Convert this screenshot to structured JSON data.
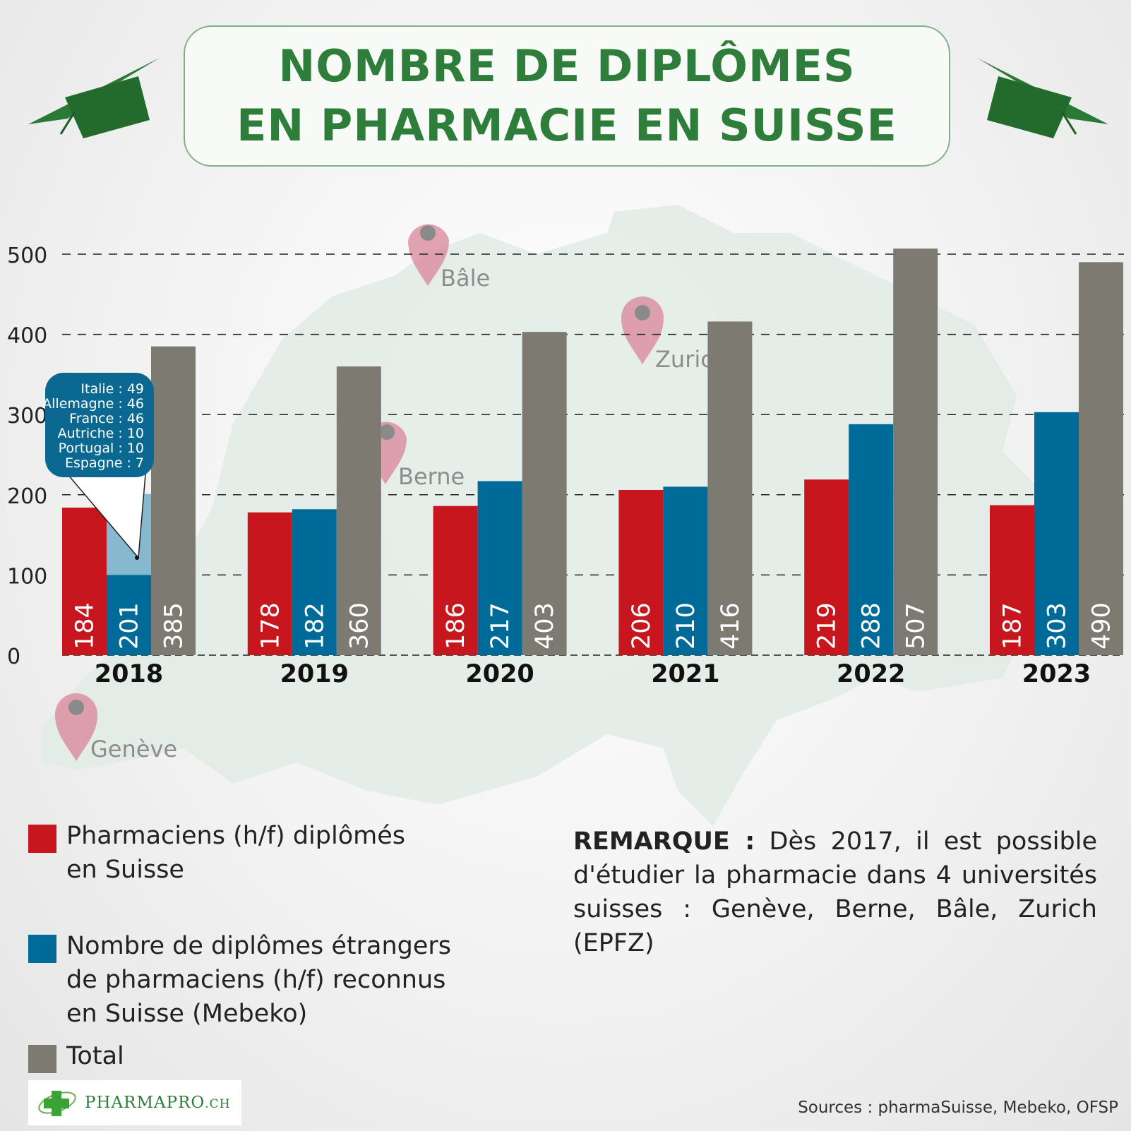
{
  "title": {
    "line1": "NOMBRE DE DIPLÔMES",
    "line2": "EN PHARMACIE EN SUISSE"
  },
  "map_labels": {
    "bale": "Bâle",
    "zurich": "Zuric",
    "berne": "Berne",
    "geneve": "Genève"
  },
  "tooltip": {
    "lines": [
      "Italie : 49",
      "Allemagne : 46",
      "France : 46",
      "Autriche : 10",
      "Portugal : 10",
      "Espagne : 7"
    ]
  },
  "legend": {
    "items": [
      {
        "label": "Pharmaciens (h/f) diplômés\nen Suisse",
        "color": "#c7161e"
      },
      {
        "label": "Nombre de diplômes étrangers\nde pharmaciens (h/f) reconnus\nen Suisse (Mebeko)",
        "color": "#006a99"
      },
      {
        "label": "Total",
        "color": "#7d7a72"
      }
    ]
  },
  "remark": {
    "label": "REMARQUE :",
    "text": " Dès 2017, il est possible d'étudier la pharmacie dans 4 universités suisses : Genève, Berne, Bâle, Zurich (EPFZ)"
  },
  "sources": "Sources : pharmaSuisse, Mebeko, OFSP",
  "logo": {
    "name": "PHARMAPRO",
    "suffix": ".CH"
  },
  "chart_data": {
    "type": "bar",
    "categories": [
      "2018",
      "2019",
      "2020",
      "2021",
      "2022",
      "2023"
    ],
    "series": [
      {
        "name": "Pharmaciens (h/f) diplômés en Suisse",
        "values": [
          184,
          178,
          186,
          206,
          219,
          187
        ],
        "color": "#c7161e"
      },
      {
        "name": "Nombre de diplômes étrangers de pharmaciens (h/f) reconnus en Suisse (Mebeko)",
        "values": [
          201,
          182,
          217,
          210,
          288,
          303
        ],
        "color": "#006a99"
      },
      {
        "name": "Total",
        "values": [
          385,
          360,
          403,
          416,
          507,
          490
        ],
        "color": "#7d7a72"
      }
    ],
    "yticks": [
      0,
      100,
      200,
      300,
      400,
      500
    ],
    "ylim": [
      0,
      500
    ],
    "grid": "dashed horizontal",
    "legend_position": "bottom-left",
    "title": "NOMBRE DE DIPLÔMES EN PHARMACIE EN SUISSE"
  }
}
